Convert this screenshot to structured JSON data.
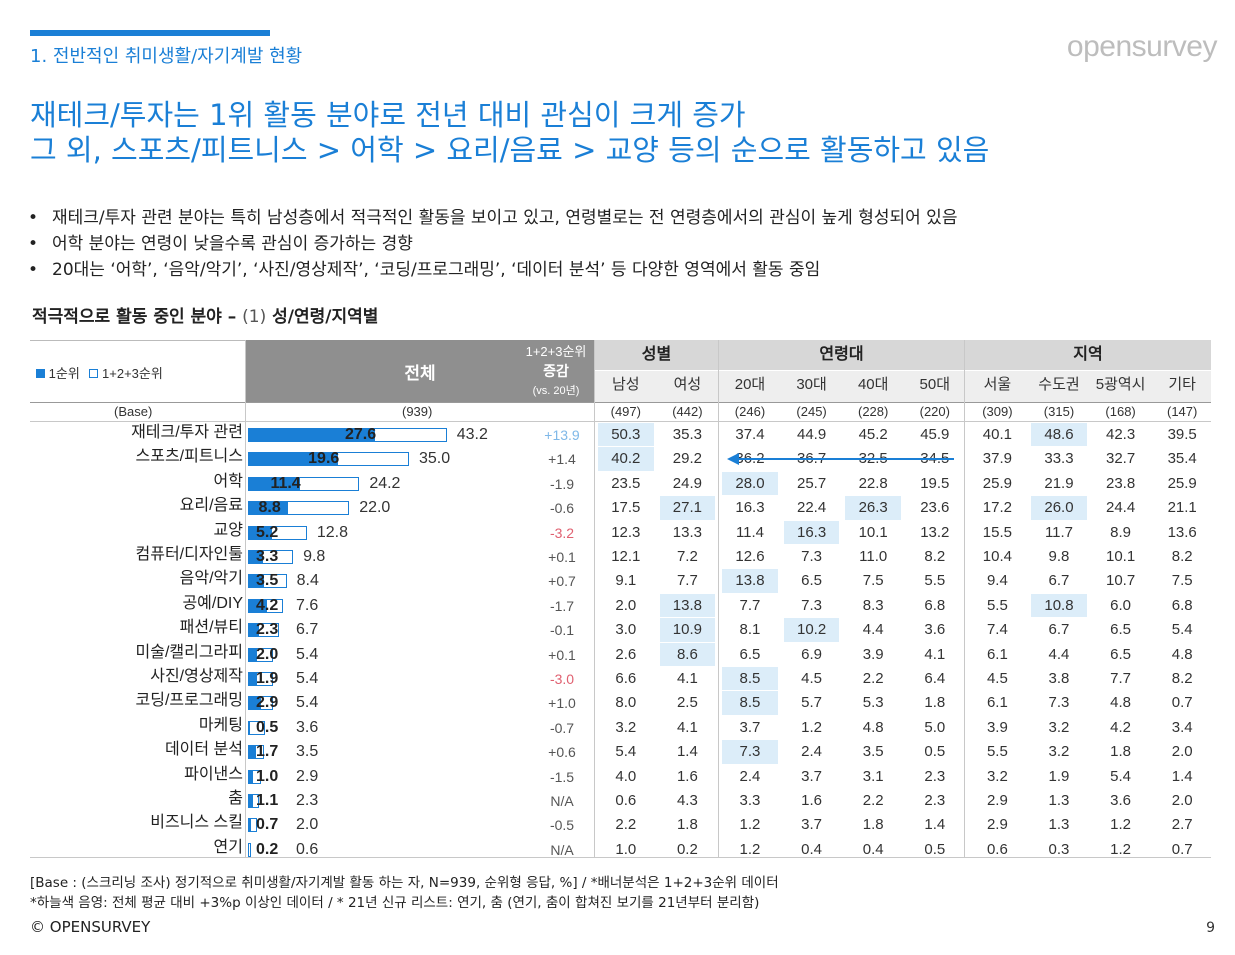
{
  "header": {
    "section_title": "1. 전반적인 취미생활/자기계발 현황",
    "logo": "opensurvey",
    "headline_line1": "재테크/투자는 1위 활동 분야로 전년 대비 관심이 크게 증가",
    "headline_line2": "그 외, 스포츠/피트니스 > 어학 > 요리/음료 > 교양 등의 순으로 활동하고 있음"
  },
  "bullets": [
    "재테크/투자 관련 분야는 특히 남성층에서 적극적인 활동을 보이고 있고, 연령별로는 전 연령층에서의 관심이 높게 형성되어 있음",
    "어학 분야는 연령이 낮을수록 관심이 증가하는 경향",
    "20대는 ‘어학’, ‘음악/악기’, ‘사진/영상제작’, ‘코딩/프로그래밍’, ‘데이터 분석’ 등 다양한 영역에서 활동 중임"
  ],
  "table_title": {
    "main": "적극적으로 활동 중인 분야 –",
    "sub": "(1)",
    "rest": "성/연령/지역별"
  },
  "table": {
    "legend_rank1": "1순위",
    "legend_rank123": "1+2+3순위",
    "total_header": "전체",
    "change_header_line1": "1+2+3순위",
    "change_header_line2": "증감",
    "change_header_line3": "(vs. 20년)",
    "groups": {
      "gender": "성별",
      "age": "연령대",
      "region": "지역"
    },
    "columns": [
      "남성",
      "여성",
      "20대",
      "30대",
      "40대",
      "50대",
      "서울",
      "수도권",
      "5광역시",
      "기타"
    ],
    "base_label": "(Base)",
    "base_total": "(939)",
    "base_values": [
      "(497)",
      "(442)",
      "(246)",
      "(245)",
      "(228)",
      "(220)",
      "(309)",
      "(315)",
      "(168)",
      "(147)"
    ],
    "rows": [
      {
        "label": "재테크/투자 관련",
        "rank1": 27.6,
        "rank123": 43.2,
        "rank1_text": "27.6",
        "rank123_text": "43.2",
        "change": "+13.9",
        "change_color": "#7fb8e8",
        "values": [
          "50.3",
          "35.3",
          "37.4",
          "44.9",
          "45.2",
          "45.9",
          "40.1",
          "48.6",
          "42.3",
          "39.5"
        ],
        "hl": [
          0,
          7
        ]
      },
      {
        "label": "스포츠/피트니스",
        "rank1": 19.6,
        "rank123": 35.0,
        "rank1_text": "19.6",
        "rank123_text": "35.0",
        "change": "+1.4",
        "change_color": "#555555",
        "values": [
          "40.2",
          "29.2",
          "36.2",
          "36.7",
          "32.5",
          "34.5",
          "37.9",
          "33.3",
          "32.7",
          "35.4"
        ],
        "hl": [
          0
        ]
      },
      {
        "label": "어학",
        "rank1": 11.4,
        "rank123": 24.2,
        "rank1_text": "11.4",
        "rank123_text": "24.2",
        "change": "-1.9",
        "change_color": "#555555",
        "values": [
          "23.5",
          "24.9",
          "28.0",
          "25.7",
          "22.8",
          "19.5",
          "25.9",
          "21.9",
          "23.8",
          "25.9"
        ],
        "hl": [
          2
        ]
      },
      {
        "label": "요리/음료",
        "rank1": 8.8,
        "rank123": 22.0,
        "rank1_text": "8.8",
        "rank123_text": "22.0",
        "change": "-0.6",
        "change_color": "#555555",
        "values": [
          "17.5",
          "27.1",
          "16.3",
          "22.4",
          "26.3",
          "23.6",
          "17.2",
          "26.0",
          "24.4",
          "21.1"
        ],
        "hl": [
          1,
          4,
          7
        ]
      },
      {
        "label": "교양",
        "rank1": 5.2,
        "rank123": 12.8,
        "rank1_text": "5.2",
        "rank123_text": "12.8",
        "change": "-3.2",
        "change_color": "#e06070",
        "values": [
          "12.3",
          "13.3",
          "11.4",
          "16.3",
          "10.1",
          "13.2",
          "15.5",
          "11.7",
          "8.9",
          "13.6"
        ],
        "hl": [
          3
        ]
      },
      {
        "label": "컴퓨터/디자인툴",
        "rank1": 3.3,
        "rank123": 9.8,
        "rank1_text": "3.3",
        "rank123_text": "9.8",
        "change": "+0.1",
        "change_color": "#555555",
        "values": [
          "12.1",
          "7.2",
          "12.6",
          "7.3",
          "11.0",
          "8.2",
          "10.4",
          "9.8",
          "10.1",
          "8.2"
        ],
        "hl": []
      },
      {
        "label": "음악/악기",
        "rank1": 3.5,
        "rank123": 8.4,
        "rank1_text": "3.5",
        "rank123_text": "8.4",
        "change": "+0.7",
        "change_color": "#555555",
        "values": [
          "9.1",
          "7.7",
          "13.8",
          "6.5",
          "7.5",
          "5.5",
          "9.4",
          "6.7",
          "10.7",
          "7.5"
        ],
        "hl": [
          2
        ]
      },
      {
        "label": "공예/DIY",
        "rank1": 4.2,
        "rank123": 7.6,
        "rank1_text": "4.2",
        "rank123_text": "7.6",
        "change": "-1.7",
        "change_color": "#555555",
        "values": [
          "2.0",
          "13.8",
          "7.7",
          "7.3",
          "8.3",
          "6.8",
          "5.5",
          "10.8",
          "6.0",
          "6.8"
        ],
        "hl": [
          1,
          7
        ]
      },
      {
        "label": "패션/뷰티",
        "rank1": 2.3,
        "rank123": 6.7,
        "rank1_text": "2.3",
        "rank123_text": "6.7",
        "change": "-0.1",
        "change_color": "#555555",
        "values": [
          "3.0",
          "10.9",
          "8.1",
          "10.2",
          "4.4",
          "3.6",
          "7.4",
          "6.7",
          "6.5",
          "5.4"
        ],
        "hl": [
          1,
          3
        ]
      },
      {
        "label": "미술/캘리그라피",
        "rank1": 2.0,
        "rank123": 5.4,
        "rank1_text": "2.0",
        "rank123_text": "5.4",
        "change": "+0.1",
        "change_color": "#555555",
        "values": [
          "2.6",
          "8.6",
          "6.5",
          "6.9",
          "3.9",
          "4.1",
          "6.1",
          "4.4",
          "6.5",
          "4.8"
        ],
        "hl": [
          1
        ]
      },
      {
        "label": "사진/영상제작",
        "rank1": 1.9,
        "rank123": 5.4,
        "rank1_text": "1.9",
        "rank123_text": "5.4",
        "change": "-3.0",
        "change_color": "#e06070",
        "values": [
          "6.6",
          "4.1",
          "8.5",
          "4.5",
          "2.2",
          "6.4",
          "4.5",
          "3.8",
          "7.7",
          "8.2"
        ],
        "hl": [
          2
        ]
      },
      {
        "label": "코딩/프로그래밍",
        "rank1": 2.9,
        "rank123": 5.4,
        "rank1_text": "2.9",
        "rank123_text": "5.4",
        "change": "+1.0",
        "change_color": "#555555",
        "values": [
          "8.0",
          "2.5",
          "8.5",
          "5.7",
          "5.3",
          "1.8",
          "6.1",
          "7.3",
          "4.8",
          "0.7"
        ],
        "hl": [
          2
        ]
      },
      {
        "label": "마케팅",
        "rank1": 0.5,
        "rank123": 3.6,
        "rank1_text": "0.5",
        "rank123_text": "3.6",
        "change": "-0.7",
        "change_color": "#555555",
        "values": [
          "3.2",
          "4.1",
          "3.7",
          "1.2",
          "4.8",
          "5.0",
          "3.9",
          "3.2",
          "4.2",
          "3.4"
        ],
        "hl": []
      },
      {
        "label": "데이터 분석",
        "rank1": 1.7,
        "rank123": 3.5,
        "rank1_text": "1.7",
        "rank123_text": "3.5",
        "change": "+0.6",
        "change_color": "#555555",
        "values": [
          "5.4",
          "1.4",
          "7.3",
          "2.4",
          "3.5",
          "0.5",
          "5.5",
          "3.2",
          "1.8",
          "2.0"
        ],
        "hl": [
          2
        ]
      },
      {
        "label": "파이낸스",
        "rank1": 1.0,
        "rank123": 2.9,
        "rank1_text": "1.0",
        "rank123_text": "2.9",
        "change": "-1.5",
        "change_color": "#555555",
        "values": [
          "4.0",
          "1.6",
          "2.4",
          "3.7",
          "3.1",
          "2.3",
          "3.2",
          "1.9",
          "5.4",
          "1.4"
        ],
        "hl": []
      },
      {
        "label": "춤",
        "rank1": 1.1,
        "rank123": 2.3,
        "rank1_text": "1.1",
        "rank123_text": "2.3",
        "change": "N/A",
        "change_color": "#555555",
        "values": [
          "0.6",
          "4.3",
          "3.3",
          "1.6",
          "2.2",
          "2.3",
          "2.9",
          "1.3",
          "3.6",
          "2.0"
        ],
        "hl": []
      },
      {
        "label": "비즈니스 스킬",
        "rank1": 0.7,
        "rank123": 2.0,
        "rank1_text": "0.7",
        "rank123_text": "2.0",
        "change": "-0.5",
        "change_color": "#555555",
        "values": [
          "2.2",
          "1.8",
          "1.2",
          "3.7",
          "1.8",
          "1.4",
          "2.9",
          "1.3",
          "1.2",
          "2.7"
        ],
        "hl": []
      },
      {
        "label": "연기",
        "rank1": 0.2,
        "rank123": 0.6,
        "rank1_text": "0.2",
        "rank123_text": "0.6",
        "change": "N/A",
        "change_color": "#555555",
        "values": [
          "1.0",
          "0.2",
          "1.2",
          "0.4",
          "0.4",
          "0.5",
          "0.6",
          "0.3",
          "1.2",
          "0.7"
        ],
        "hl": []
      }
    ],
    "highlight_color": "#dcedf9",
    "bar_color": "#1a7fd6"
  },
  "footnote_line1": "[Base : (스크리닝 조사) 정기적으로 취미생활/자기계발 활동 하는 자, N=939, 순위형 응답, %] / *배너분석은 1+2+3순위 데이터",
  "footnote_line2": "*하늘색 음영: 전체 평균 대비 +3%p 이상인 데이터 / * 21년 신규 리스트: 연기, 춤 (연기, 춤이 합쳐진 보기를 21년부터 분리함)",
  "copyright": "© OPENSURVEY",
  "page_number": "9"
}
